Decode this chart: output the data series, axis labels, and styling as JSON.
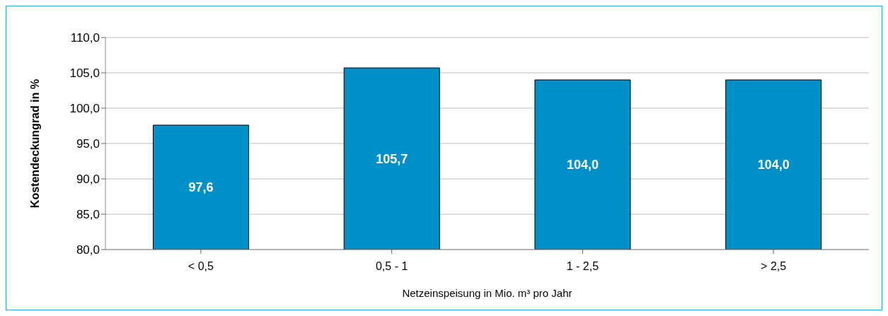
{
  "chart_data": {
    "type": "bar",
    "xlabel": "Netzeinspeisung in Mio. m³ pro Jahr",
    "ylabel": "Kostendeckungrad in %",
    "categories": [
      "< 0,5",
      "0,5 - 1",
      "1 - 2,5",
      "> 2,5"
    ],
    "values": [
      97.6,
      105.7,
      104.0,
      104.0
    ],
    "color": "#0090c8",
    "value_labels": [
      "97,6",
      "105,7",
      "104,0",
      "104,0"
    ],
    "ylim": [
      80,
      110
    ],
    "yticks": [
      {
        "value": 80,
        "label": "80,0"
      },
      {
        "value": 85,
        "label": "85,0"
      },
      {
        "value": 90,
        "label": "90,0"
      },
      {
        "value": 95,
        "label": "95,0"
      },
      {
        "value": 100,
        "label": "100,0"
      },
      {
        "value": 105,
        "label": "105,0"
      },
      {
        "value": 110,
        "label": "110,0"
      }
    ],
    "grid": "y"
  }
}
